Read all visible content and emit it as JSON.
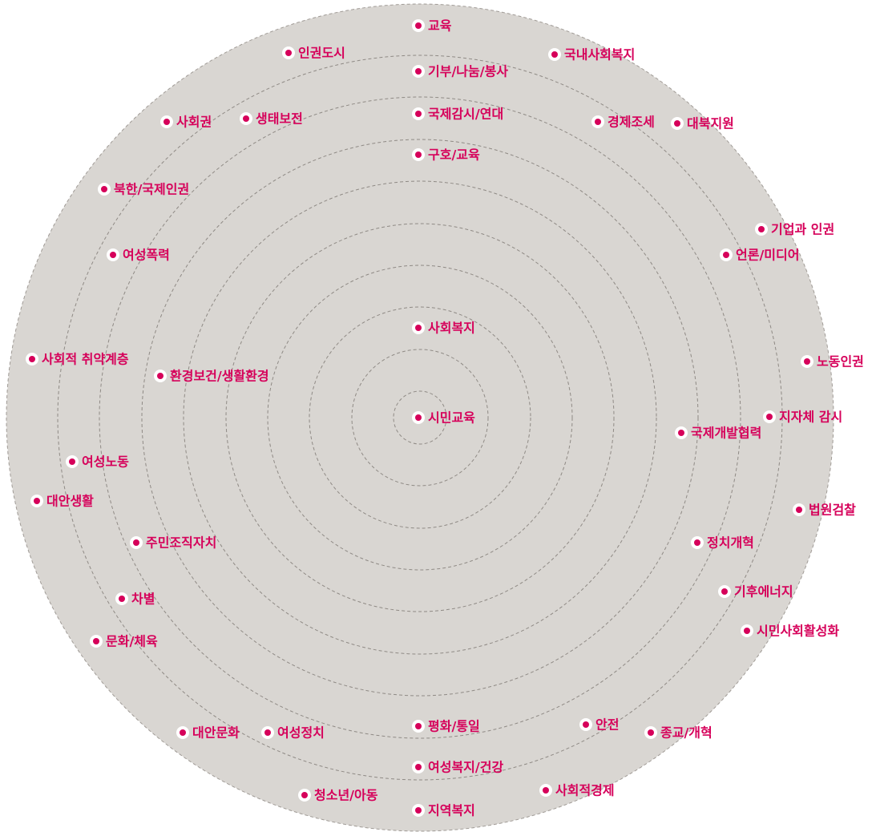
{
  "nodes": [
    {
      "label": "교육"
    },
    {
      "label": "인권도시"
    },
    {
      "label": "국내사회복지"
    },
    {
      "label": "기부/나눔/봉사"
    },
    {
      "label": "국제감시/연대"
    },
    {
      "label": "사회권"
    },
    {
      "label": "생태보전"
    },
    {
      "label": "경제조세"
    },
    {
      "label": "대북지원"
    },
    {
      "label": "구호/교육"
    },
    {
      "label": "북한/국제인권"
    },
    {
      "label": "기업과 인권"
    },
    {
      "label": "언론/미디어"
    },
    {
      "label": "여성폭력"
    },
    {
      "label": "사회복지"
    },
    {
      "label": "사회적 취약계층"
    },
    {
      "label": "환경보건/생활환경"
    },
    {
      "label": "노동인권"
    },
    {
      "label": "시민교육"
    },
    {
      "label": "지자체 감시"
    },
    {
      "label": "국제개발협력"
    },
    {
      "label": "여성노동"
    },
    {
      "label": "대안생활"
    },
    {
      "label": "법원검찰"
    },
    {
      "label": "주민조직자치"
    },
    {
      "label": "정치개혁"
    },
    {
      "label": "기후에너지"
    },
    {
      "label": "차별"
    },
    {
      "label": "시민사회활성화"
    },
    {
      "label": "문화/체육"
    },
    {
      "label": "평화/통일"
    },
    {
      "label": "안전"
    },
    {
      "label": "대안문화"
    },
    {
      "label": "여성정치"
    },
    {
      "label": "종교/개혁"
    },
    {
      "label": "여성복지/건강"
    },
    {
      "label": "사회적경제"
    },
    {
      "label": "청소년/아동"
    },
    {
      "label": "지역복지"
    }
  ]
}
